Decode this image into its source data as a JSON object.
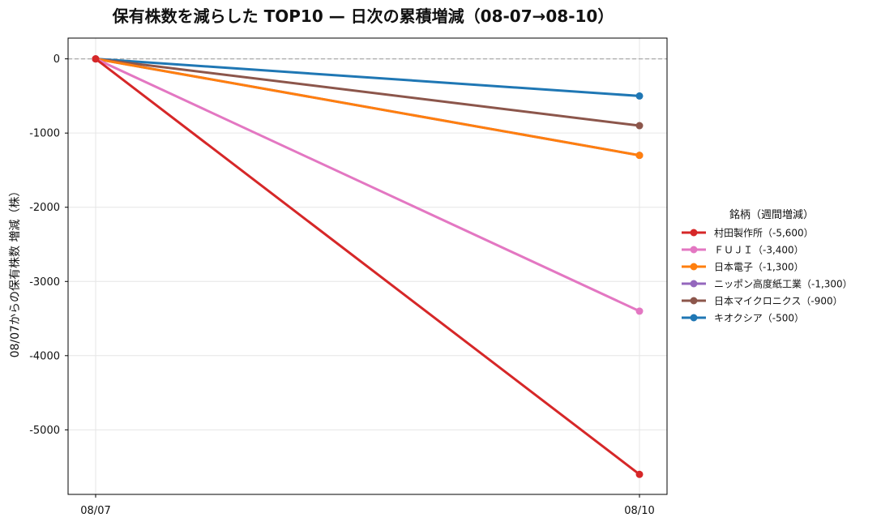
{
  "chart_data": {
    "type": "line",
    "title": "保有株数を減らした TOP10 — 日次の累積増減（08-07→08-10）",
    "xlabel": "",
    "ylabel": "08/07からの保有株数 増減（株）",
    "x": [
      "08/07",
      "08/10"
    ],
    "y_ticks": [
      0,
      -1000,
      -2000,
      -3000,
      -4000,
      -5000
    ],
    "y_tick_labels": [
      "0",
      "-1000",
      "-2000",
      "-3000",
      "-4000",
      "-5000"
    ],
    "ylim": [
      -5870,
      280
    ],
    "grid": true,
    "zero_line": true,
    "legend": {
      "title": "銘柄（週間増減）",
      "placement": "right"
    },
    "series": [
      {
        "name": "村田製作所（-5,600）",
        "color": "#d62728",
        "values": [
          0,
          -5600
        ]
      },
      {
        "name": "ＦＵＪＩ（-3,400）",
        "color": "#e377c2",
        "values": [
          0,
          -3400
        ]
      },
      {
        "name": "日本電子（-1,300）",
        "color": "#ff7f0e",
        "values": [
          0,
          -1300
        ]
      },
      {
        "name": "ニッポン高度紙工業（-1,300）",
        "color": "#9467bd",
        "values": [
          0,
          -1300
        ]
      },
      {
        "name": "日本マイクロニクス（-900）",
        "color": "#8c564b",
        "values": [
          0,
          -900
        ]
      },
      {
        "name": "キオクシア（-500）",
        "color": "#1f77b4",
        "values": [
          0,
          -500
        ]
      }
    ]
  }
}
